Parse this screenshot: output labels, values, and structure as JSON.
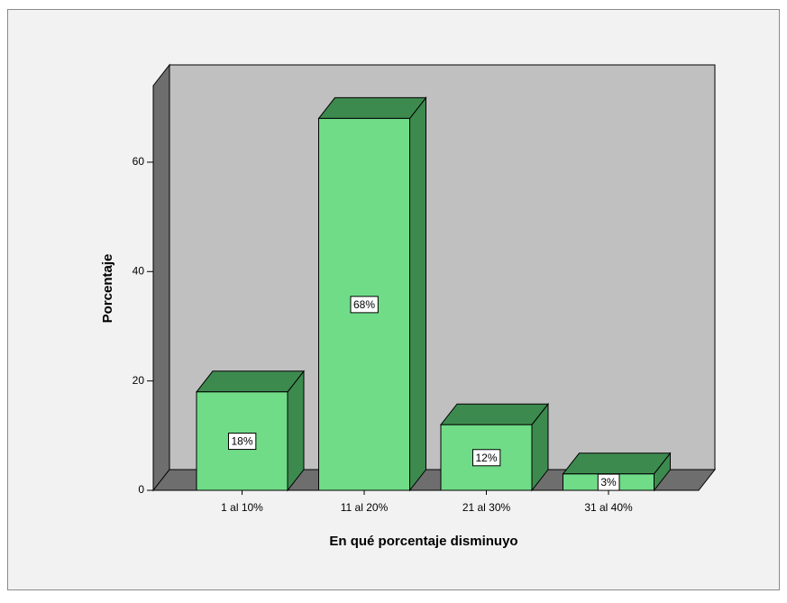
{
  "chart_data": {
    "type": "bar3d",
    "x_label": "En qué porcentaje disminuyo",
    "y_label": "Porcentaje",
    "categories": [
      "1 al 10%",
      "11 al 20%",
      "21 al 30%",
      "31 al 40%"
    ],
    "values": [
      18,
      68,
      12,
      3
    ],
    "value_labels": [
      "18%",
      "68%",
      "12%",
      "3%"
    ],
    "color": "#70dc88",
    "ylim": [
      0,
      74
    ],
    "yticks": [
      0,
      20,
      40,
      60
    ]
  }
}
